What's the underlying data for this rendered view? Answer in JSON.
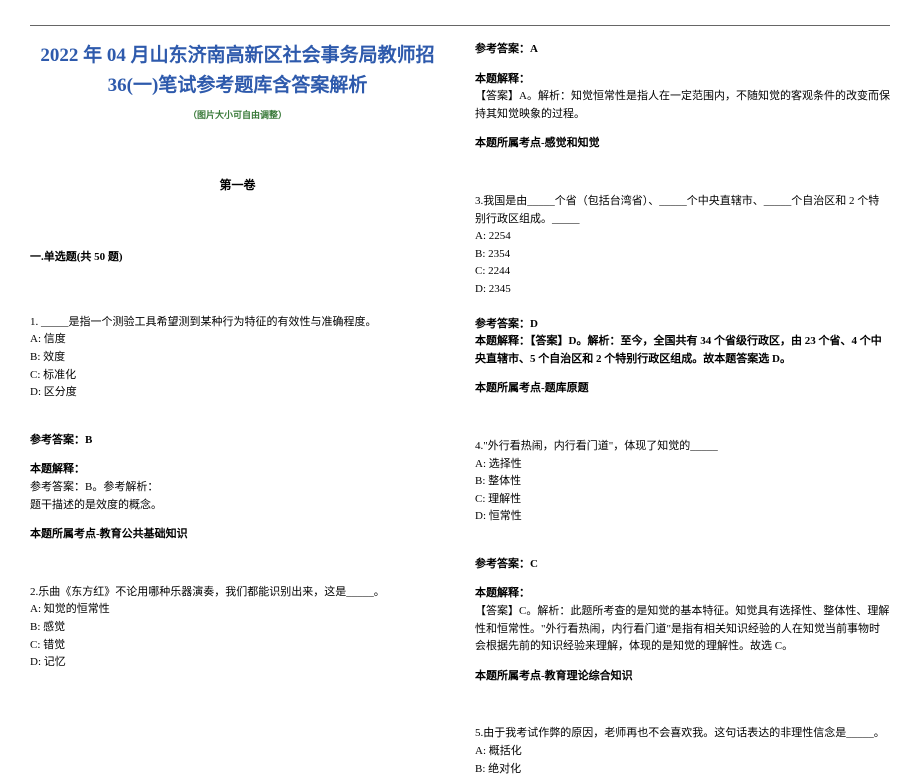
{
  "doc": {
    "title_line1": "2022 年 04 月山东济南高新区社会事务局教师招",
    "title_line2": "36(一)笔试参考题库含答案解析",
    "subtitle": "（图片大小可自由调整）",
    "juan": "第一卷",
    "section": "一.单选题(共 50 题)"
  },
  "q1": {
    "text": "1. _____是指一个测验工具希望测到某种行为特征的有效性与准确程度。",
    "a": "A: 信度",
    "b": "B: 效度",
    "c": "C: 标准化",
    "d": "D: 区分度",
    "ans_label": "参考答案：B",
    "exp_label": "本题解释：",
    "exp_line1": "参考答案：B。参考解析：",
    "exp_line2": "题干描述的是效度的概念。",
    "point": "本题所属考点-教育公共基础知识"
  },
  "q2": {
    "text": "2.乐曲《东方红》不论用哪种乐器演奏，我们都能识别出来，这是_____。",
    "a": "A: 知觉的恒常性",
    "b": "B: 感觉",
    "c": "C: 错觉",
    "d": "D: 记忆",
    "ans_label": "参考答案：A",
    "exp_label": "本题解释：",
    "exp_line1": "【答案】A。解析：知觉恒常性是指人在一定范围内，不随知觉的客观条件的改变而保持其知觉映象的过程。",
    "point": "本题所属考点-感觉和知觉"
  },
  "q3": {
    "text": "3.我国是由_____个省（包括台湾省）、_____个中央直辖市、_____个自治区和 2 个特别行政区组成。_____",
    "a": "A: 2254",
    "b": "B: 2354",
    "c": "C: 2244",
    "d": "D: 2345",
    "ans_label": "参考答案：D",
    "exp_line1": "本题解释：【答案】D。解析：至今，全国共有 34 个省级行政区，由 23 个省、4 个中央直辖市、5 个自治区和 2 个特别行政区组成。故本题答案选 D。",
    "point": "本题所属考点-题库原题"
  },
  "q4": {
    "text": "4.\"外行看热闹，内行看门道\"，体现了知觉的_____",
    "a": "A: 选择性",
    "b": "B: 整体性",
    "c": "C: 理解性",
    "d": "D: 恒常性",
    "ans_label": "参考答案：C",
    "exp_label": "本题解释：",
    "exp_line1": "【答案】C。解析：此题所考查的是知觉的基本特征。知觉具有选择性、整体性、理解性和恒常性。\"外行看热闹，内行看门道\"是指有相关知识经验的人在知觉当前事物时会根据先前的知识经验来理解，体现的是知觉的理解性。故选 C。",
    "point": "本题所属考点-教育理论综合知识"
  },
  "q5": {
    "text": "5.由于我考试作弊的原因，老师再也不会喜欢我。这句话表达的非理性信念是_____。",
    "a": "A: 概括化",
    "b": "B: 绝对化"
  }
}
